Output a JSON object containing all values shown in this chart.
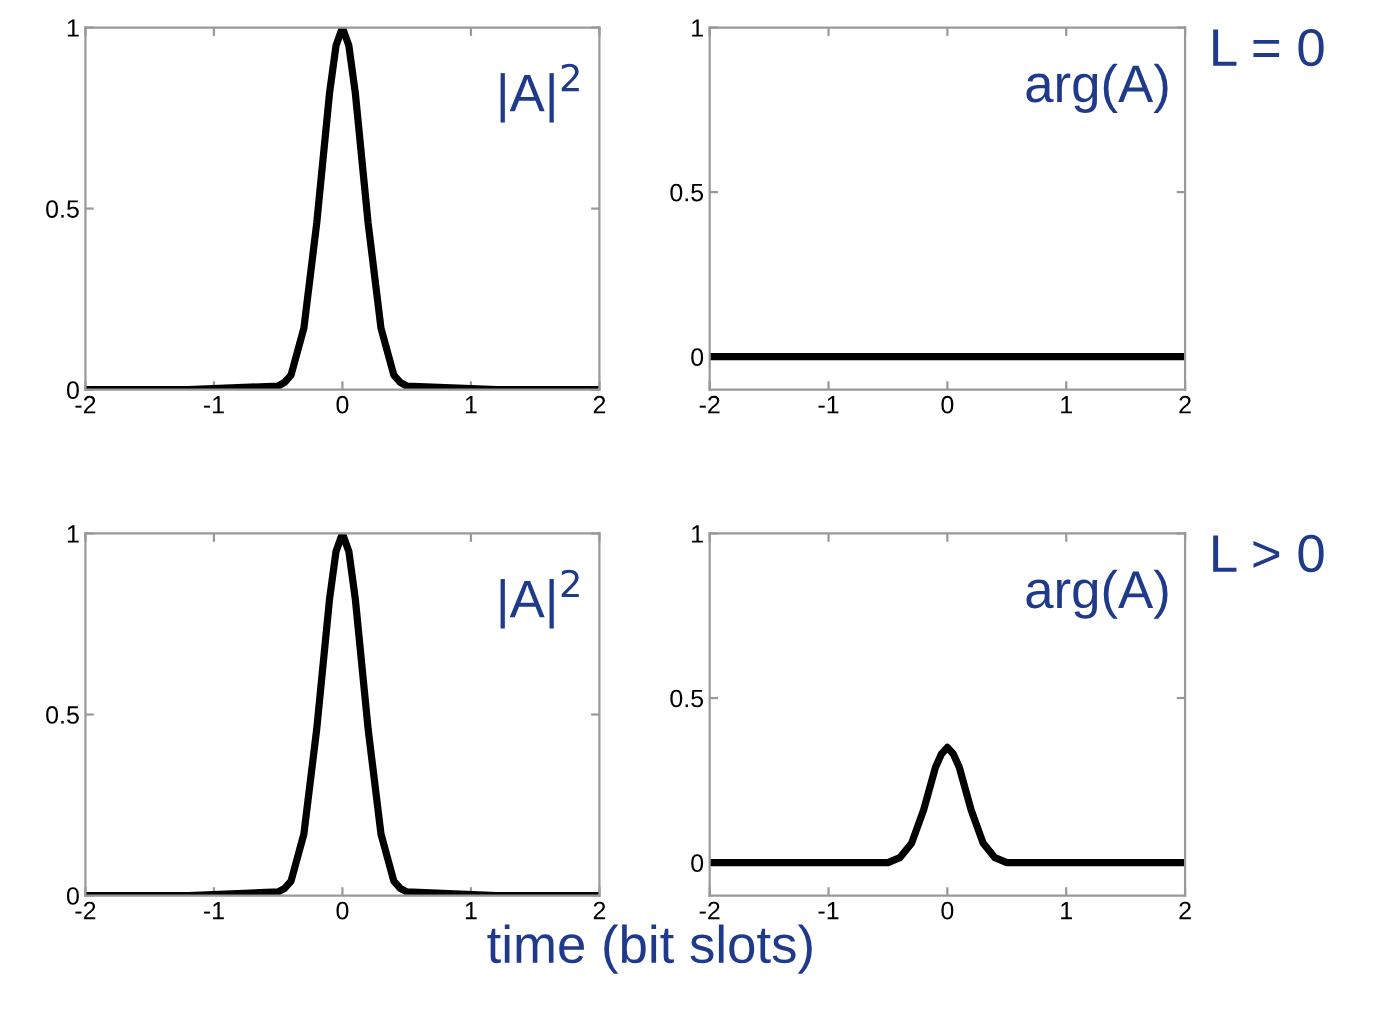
{
  "chart_data": [
    {
      "type": "line",
      "x": [
        -2,
        -1.2,
        -0.5,
        -0.45,
        -0.4,
        -0.3,
        -0.2,
        -0.1,
        -0.05,
        0,
        0.05,
        0.1,
        0.2,
        0.3,
        0.4,
        0.45,
        0.5,
        1.2,
        2
      ],
      "series": [
        {
          "color": "#000000",
          "values": [
            0,
            0,
            0.01,
            0.02,
            0.04,
            0.17,
            0.46,
            0.82,
            0.95,
            1,
            0.95,
            0.82,
            0.46,
            0.17,
            0.04,
            0.02,
            0.01,
            0,
            0
          ]
        }
      ],
      "xlim": [
        -2,
        2
      ],
      "ylim": [
        0,
        1
      ],
      "xticks": [
        -2,
        -1,
        0,
        1,
        2
      ],
      "yticks": [
        0,
        0.5,
        1
      ],
      "grid": false,
      "legend": false,
      "annotations": [
        "|A|$^{2}$"
      ]
    },
    {
      "type": "line",
      "x": [
        -2,
        2
      ],
      "series": [
        {
          "color": "#000000",
          "values": [
            0,
            0
          ]
        }
      ],
      "xlim": [
        -2,
        2
      ],
      "ylim": [
        -0.1,
        1
      ],
      "xticks": [
        -2,
        -1,
        0,
        1,
        2
      ],
      "yticks": [
        0,
        0.5,
        1
      ],
      "grid": false,
      "legend": false,
      "annotations": [
        "arg(A)",
        "L = 0"
      ]
    },
    {
      "type": "line",
      "x": [
        -2,
        -1.2,
        -0.5,
        -0.45,
        -0.4,
        -0.3,
        -0.2,
        -0.1,
        -0.05,
        0,
        0.05,
        0.1,
        0.2,
        0.3,
        0.4,
        0.45,
        0.5,
        1.2,
        2
      ],
      "series": [
        {
          "color": "#000000",
          "values": [
            0,
            0,
            0.01,
            0.02,
            0.04,
            0.17,
            0.46,
            0.82,
            0.95,
            1,
            0.95,
            0.82,
            0.46,
            0.17,
            0.04,
            0.02,
            0.01,
            0,
            0
          ]
        }
      ],
      "xlim": [
        -2,
        2
      ],
      "ylim": [
        0,
        1
      ],
      "xticks": [
        -2,
        -1,
        0,
        1,
        2
      ],
      "yticks": [
        0,
        0.5,
        1
      ],
      "grid": false,
      "legend": false,
      "xlabel": "time (bit slots)",
      "annotations": [
        "|A|$^{2}$"
      ]
    },
    {
      "type": "line",
      "x": [
        -2,
        -1,
        -0.5,
        -0.4,
        -0.3,
        -0.2,
        -0.1,
        -0.05,
        0,
        0.05,
        0.1,
        0.2,
        0.3,
        0.4,
        0.5,
        1,
        2
      ],
      "series": [
        {
          "color": "#000000",
          "values": [
            0,
            0,
            0,
            0.015,
            0.06,
            0.16,
            0.29,
            0.33,
            0.35,
            0.33,
            0.29,
            0.16,
            0.06,
            0.015,
            0,
            0,
            0
          ]
        }
      ],
      "xlim": [
        -2,
        2
      ],
      "ylim": [
        -0.1,
        1
      ],
      "xticks": [
        -2,
        -1,
        0,
        1,
        2
      ],
      "yticks": [
        0,
        0.5,
        1
      ],
      "grid": false,
      "legend": false,
      "annotations": [
        "arg(A)",
        "L > 0"
      ]
    }
  ]
}
